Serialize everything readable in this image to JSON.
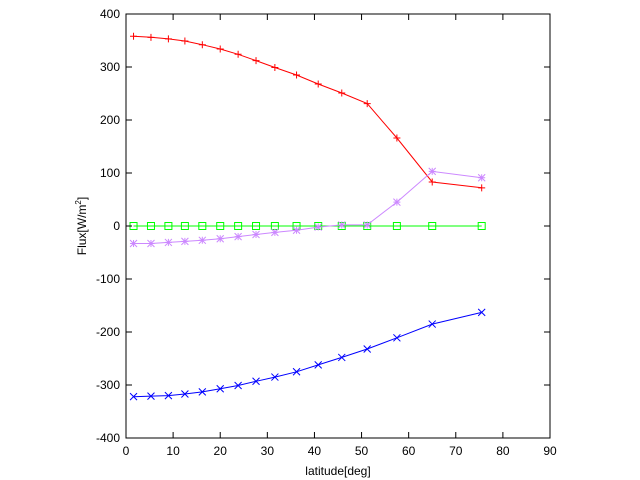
{
  "chart_data": {
    "type": "line",
    "xlabel": "latitude[deg]",
    "ylabel_main": "Flux[W/m",
    "ylabel_sup": "2",
    "ylabel_end": "]",
    "xlim": [
      0,
      90
    ],
    "ylim": [
      -400,
      400
    ],
    "xticks": [
      0,
      10,
      20,
      30,
      40,
      50,
      60,
      70,
      80,
      90
    ],
    "yticks": [
      -400,
      -300,
      -200,
      -100,
      0,
      100,
      200,
      300,
      400
    ],
    "grid": false,
    "legend": "none",
    "series": [
      {
        "color": "#ff0000",
        "marker": "plus",
        "x": [
          1.6,
          5.3,
          9.0,
          12.5,
          16.2,
          20.0,
          23.8,
          27.6,
          31.6,
          36.2,
          40.8,
          45.8,
          51.2,
          57.5,
          65.0,
          75.5
        ],
        "y": [
          358,
          356,
          353,
          349,
          342,
          334,
          324,
          312,
          299,
          285,
          268,
          251,
          231,
          166,
          83,
          72
        ]
      },
      {
        "color": "#00ff00",
        "marker": "square",
        "x": [
          1.6,
          5.3,
          9.0,
          12.5,
          16.2,
          20.0,
          23.8,
          27.6,
          31.6,
          36.2,
          40.8,
          45.8,
          51.2,
          57.5,
          65.0,
          75.5
        ],
        "y": [
          0,
          0,
          0,
          0,
          0,
          0,
          0,
          0,
          0,
          0,
          0,
          0,
          0,
          0,
          0,
          0
        ]
      },
      {
        "color": "#cc88ff",
        "marker": "star",
        "x": [
          1.6,
          5.3,
          9.0,
          12.5,
          16.2,
          20.0,
          23.8,
          27.6,
          31.6,
          36.2,
          40.8,
          45.8,
          51.2,
          57.5,
          65.0,
          75.5
        ],
        "y": [
          -33,
          -33,
          -31,
          -29,
          -27,
          -24,
          -20,
          -16,
          -12,
          -8,
          -2,
          2,
          2,
          45,
          103,
          91
        ]
      },
      {
        "color": "#0000ff",
        "marker": "cross",
        "x": [
          1.6,
          5.3,
          9.0,
          12.5,
          16.2,
          20.0,
          23.8,
          27.6,
          31.6,
          36.2,
          40.8,
          45.8,
          51.2,
          57.5,
          65.0,
          75.5
        ],
        "y": [
          -322,
          -321,
          -320,
          -317,
          -313,
          -307,
          -301,
          -293,
          -285,
          -275,
          -262,
          -248,
          -232,
          -211,
          -185,
          -163
        ]
      }
    ]
  }
}
